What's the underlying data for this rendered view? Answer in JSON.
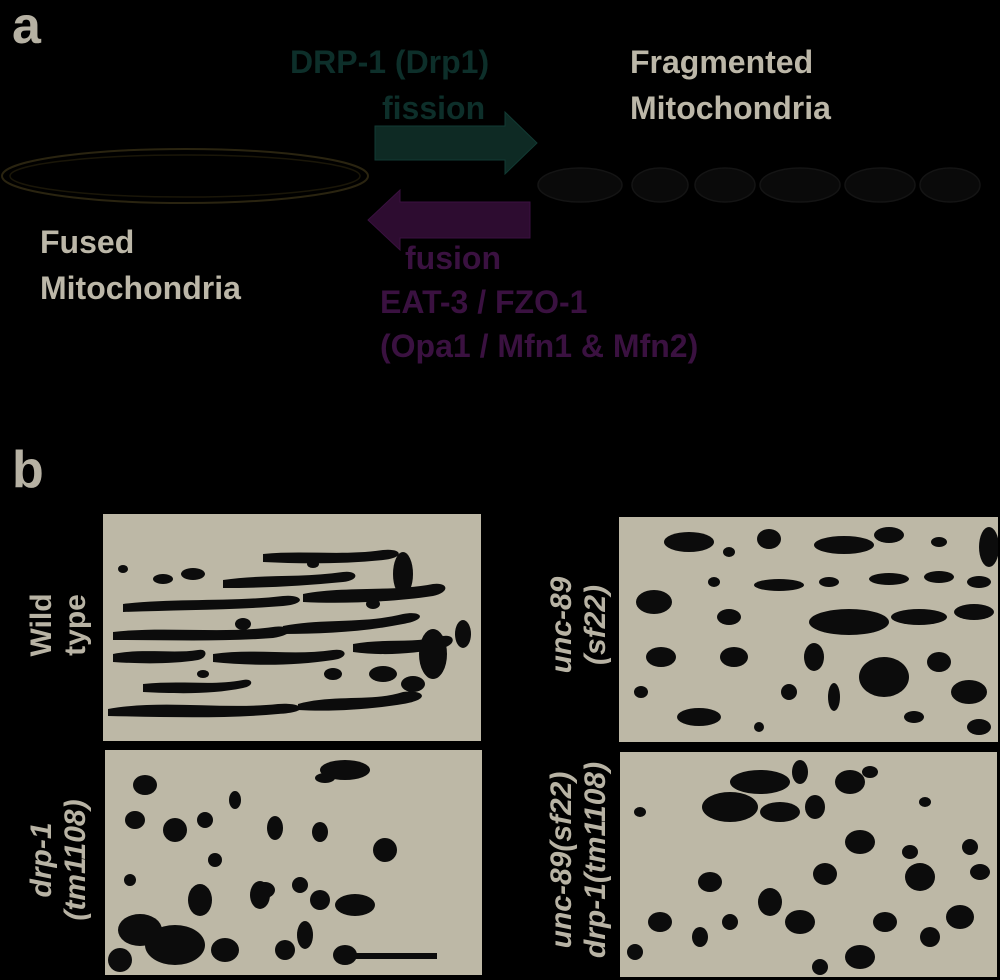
{
  "panel_a": {
    "letter": "a",
    "fission_protein": "DRP-1 (Drp1)",
    "fission_label": "fission",
    "fragmented_line1": "Fragmented",
    "fragmented_line2": "Mitochondria",
    "fused_line1": "Fused",
    "fused_line2": "Mitochondria",
    "fusion_label": "fusion",
    "fusion_protein_line1": "EAT-3 / FZO-1",
    "fusion_protein_line2": "(Opa1 / Mfn1 & Mfn2)",
    "colors": {
      "fission": "#0d2f2a",
      "fusion": "#3a1140",
      "text": "#bcb7a8"
    }
  },
  "panel_b": {
    "letter": "b",
    "images": [
      {
        "line1": "Wild",
        "line2": "type"
      },
      {
        "line1": "unc-89",
        "line2": "(sf22)"
      },
      {
        "line1": "drp-1",
        "line2": "(tm1108)"
      },
      {
        "line1": "unc-89(sf22)",
        "line2": "drp-1(tm1108)"
      }
    ],
    "colors": {
      "background": "#bdb8a6",
      "mitochondria": "#0c0c0c"
    }
  }
}
